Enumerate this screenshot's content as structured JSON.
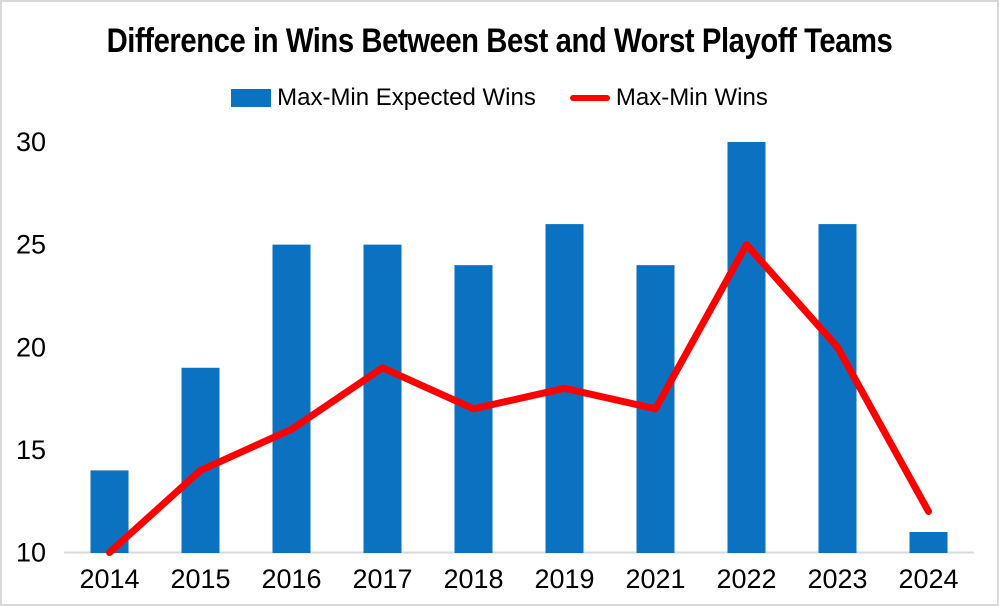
{
  "page": {
    "background": "#FFFFFF",
    "frame_border_color": "#D8D8D8"
  },
  "chart_data": {
    "type": "combo",
    "title": "Difference in Wins Between Best and Worst Playoff Teams",
    "categories": [
      "2014",
      "2015",
      "2016",
      "2017",
      "2018",
      "2019",
      "2021",
      "2022",
      "2023",
      "2024"
    ],
    "series": [
      {
        "name": "Max-Min Expected Wins",
        "type": "bar",
        "color": "#0A72C0",
        "values": [
          14,
          19,
          25,
          25,
          24,
          26,
          24,
          30,
          26,
          11
        ]
      },
      {
        "name": "Max-Min Wins",
        "type": "line",
        "color": "#FF0000",
        "values": [
          10,
          14,
          16,
          19,
          17,
          18,
          17,
          25,
          20,
          12
        ]
      }
    ],
    "xlabel": "",
    "ylabel": "",
    "ylim": [
      10,
      30
    ],
    "yticks": [
      10,
      15,
      20,
      25,
      30
    ],
    "grid": "none",
    "axis_line_color": "#D9D9D9",
    "text_color": "#000000",
    "legend_position": "top"
  }
}
